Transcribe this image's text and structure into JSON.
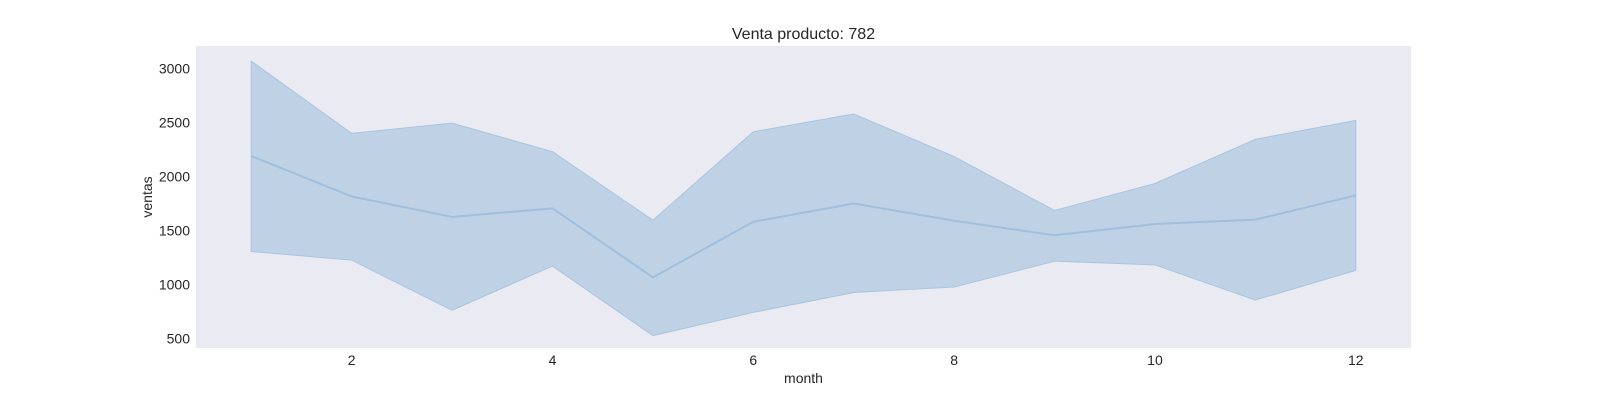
{
  "chart_data": {
    "type": "line",
    "title": "Venta producto: 782",
    "xlabel": "month",
    "ylabel": "ventas",
    "x": [
      1,
      2,
      3,
      4,
      5,
      6,
      7,
      8,
      9,
      10,
      11,
      12
    ],
    "series": [
      {
        "values": [
          2190,
          1815,
          1625,
          1705,
          1065,
          1580,
          1750,
          1590,
          1455,
          1560,
          1600,
          1825
        ],
        "band_upper": [
          3070,
          2400,
          2495,
          2230,
          1595,
          2415,
          2580,
          2185,
          1685,
          1935,
          2345,
          2520
        ],
        "band_lower": [
          1305,
          1225,
          760,
          1170,
          525,
          740,
          925,
          975,
          1215,
          1180,
          855,
          1130
        ]
      }
    ],
    "xlim": [
      0.45,
      12.55
    ],
    "ylim": [
      410,
      3210
    ],
    "xticks": [
      2,
      4,
      6,
      8,
      10,
      12
    ],
    "yticks": [
      500,
      1000,
      1500,
      2000,
      2500,
      3000
    ],
    "grid": false,
    "colors": {
      "plot_background": "#eaeaf2",
      "line": "#9fbfdd",
      "band_fill": "#bfd2e5",
      "band_edge": "#a9c4df"
    }
  }
}
